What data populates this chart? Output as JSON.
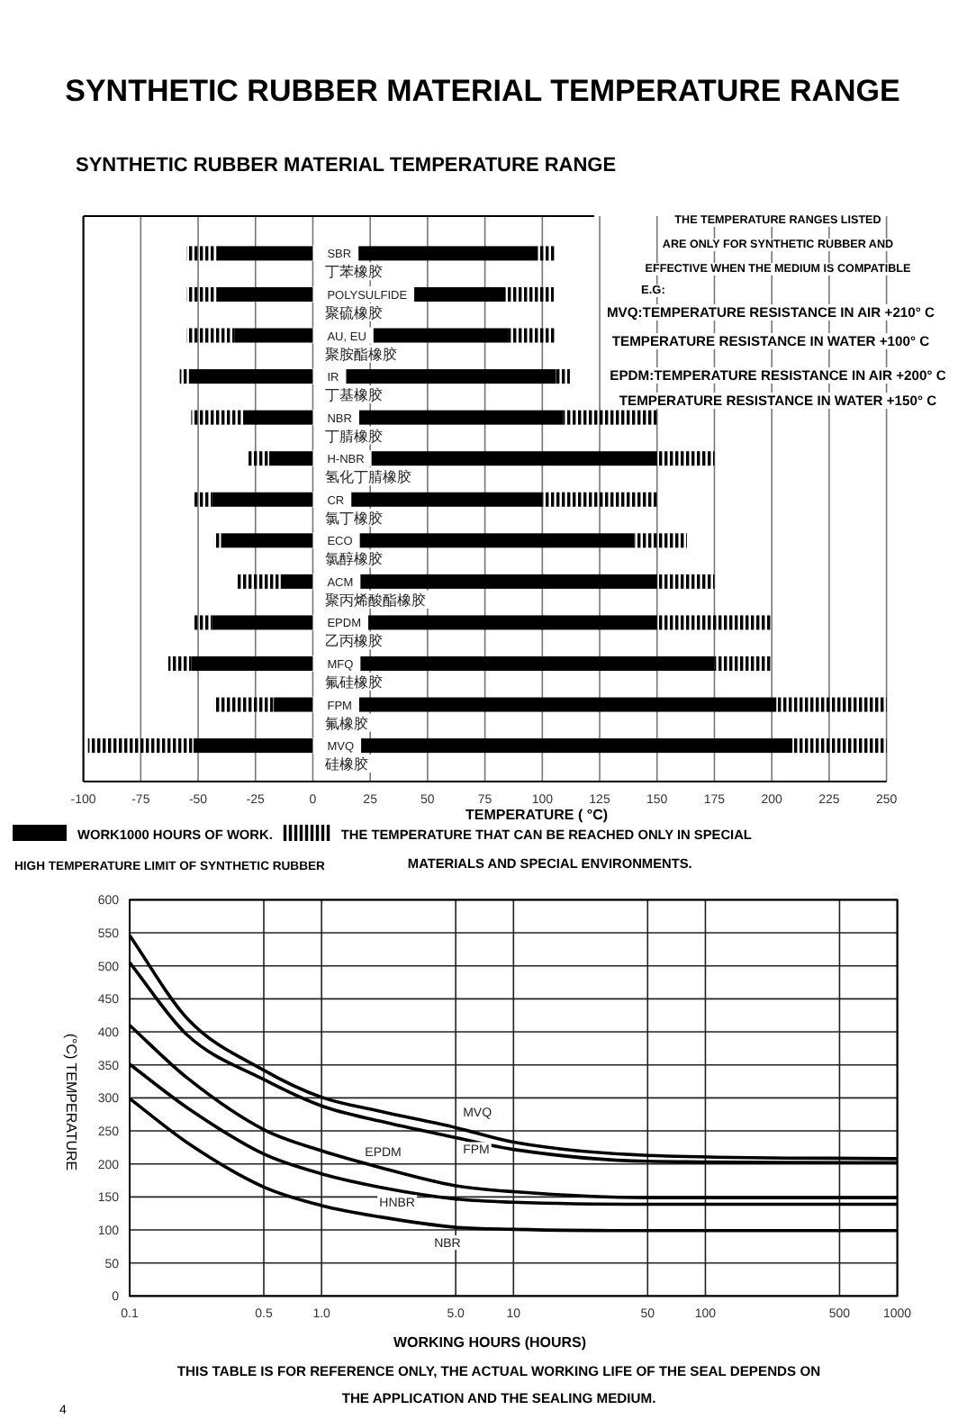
{
  "chart_data": [
    {
      "type": "bar",
      "orientation": "horizontal",
      "title": "SYNTHETIC RUBBER MATERIAL TEMPERATURE RANGE",
      "subtitle": "SYNTHETIC RUBBER MATERIAL TEMPERATURE RANGE",
      "xlabel": "TEMPERATURE ( °C)",
      "categories": [
        "SBR\n丁苯橡胶",
        "POLYSULFIDE\n聚硫橡胶",
        "AU, EU\n聚胺酯橡胶",
        "IR\n丁基橡胶",
        "NBR\n丁腈橡胶",
        "H-NBR\n氢化丁腈橡胶",
        "CR\n氯丁橡胶",
        "ECO\n氯醇橡胶",
        "ACM\n聚丙烯酸酯橡胶",
        "EPDM\n乙丙橡胶",
        "MFQ\n氟硅橡胶",
        "FPM\n氟橡胶",
        "MVQ\n硅橡胶"
      ],
      "series": [
        {
          "color": "#000000",
          "base": [
            -55,
            -55,
            -55,
            -58,
            -53,
            -28,
            -52,
            -43,
            -33,
            -52,
            -63,
            -43,
            -98
          ],
          "values": [
            13,
            13,
            21,
            4,
            23,
            9,
            8,
            3,
            19,
            8,
            10,
            26,
            46
          ]
        },
        {
          "name": "WORK1000 HOURS OF WORK.",
          "color": "#000000",
          "base": [
            -42,
            -42,
            -34,
            -54,
            -30,
            -19,
            -44,
            -40,
            -14,
            -44,
            -53,
            -17,
            -52
          ],
          "values": [
            140,
            126,
            119,
            160,
            139,
            169,
            144,
            180,
            164,
            194,
            228,
            219,
            261
          ]
        },
        {
          "name": "THE TEMPERATURE THAT CAN BE REACHED ONLY IN SPECIAL\nMATERIALS AND SPECIAL ENVIRONMENTS.",
          "color": "#000000",
          "base": [
            98,
            84,
            85,
            106,
            109,
            150,
            100,
            140,
            150,
            150,
            175,
            202,
            209
          ],
          "values": [
            8,
            21,
            21,
            6,
            41,
            25,
            50,
            23,
            25,
            50,
            25,
            48,
            41
          ]
        }
      ],
      "xlim": [
        -100,
        250
      ],
      "xticks": [
        -100,
        -75,
        -50,
        -25,
        0,
        25,
        50,
        75,
        100,
        125,
        150,
        175,
        200,
        225,
        250
      ],
      "grid": "x",
      "legend": "bottom",
      "annotations": [
        "THE TEMPERATURE RANGES LISTED\nARE ONLY FOR SYNTHETIC RUBBER AND\nEFFECTIVE WHEN THE MEDIUM IS COMPATIBLE",
        "E.G:",
        "MVQ:TEMPERATURE RESISTANCE IN AIR +210° C\nTEMPERATURE RESISTANCE IN WATER +100° C",
        "EPDM:TEMPERATURE RESISTANCE IN AIR +200° C\nTEMPERATURE RESISTANCE IN WATER +150° C",
        "HIGH TEMPERATURE LIMIT OF SYNTHETIC RUBBER"
      ]
    },
    {
      "type": "line",
      "xlabel": "WORKING HOURS (HOURS)",
      "ylabel": "(°C) TEMPERATURE",
      "log": "x",
      "x": [
        0.1,
        0.2,
        0.5,
        1,
        2,
        5,
        10,
        50,
        1000
      ],
      "series": [
        {
          "name": "MVQ",
          "color": "#000000",
          "values": [
            546,
            420,
            342,
            301,
            280,
            255,
            233,
            213,
            208
          ]
        },
        {
          "name": "FPM",
          "color": "#000000",
          "values": [
            505,
            395,
            328,
            288,
            265,
            240,
            222,
            204,
            202
          ]
        },
        {
          "name": "EPDM",
          "color": "#000000",
          "values": [
            410,
            330,
            252,
            220,
            195,
            167,
            158,
            149,
            149
          ]
        },
        {
          "name": "HNBR",
          "color": "#000000",
          "values": [
            351,
            285,
            215,
            185,
            165,
            147,
            142,
            139,
            139
          ]
        },
        {
          "name": "NBR",
          "color": "#000000",
          "values": [
            299,
            232,
            165,
            137,
            120,
            104,
            101,
            99,
            99
          ]
        }
      ],
      "xlim": [
        0.1,
        1000
      ],
      "xticks": [
        0.1,
        0.5,
        {
          "value": 1,
          "label": "1.0"
        },
        {
          "value": 5,
          "label": "5.0"
        },
        10,
        50,
        100,
        500,
        1000
      ],
      "ylim": [
        0,
        600
      ],
      "yticks": [
        0,
        50,
        100,
        150,
        200,
        250,
        300,
        350,
        400,
        450,
        500,
        550,
        600
      ],
      "grid": true,
      "annotations": [
        "THIS TABLE IS FOR REFERENCE ONLY, THE ACTUAL WORKING LIFE OF THE SEAL DEPENDS ON\nTHE APPLICATION AND THE SEALING MEDIUM.",
        "4"
      ]
    }
  ]
}
